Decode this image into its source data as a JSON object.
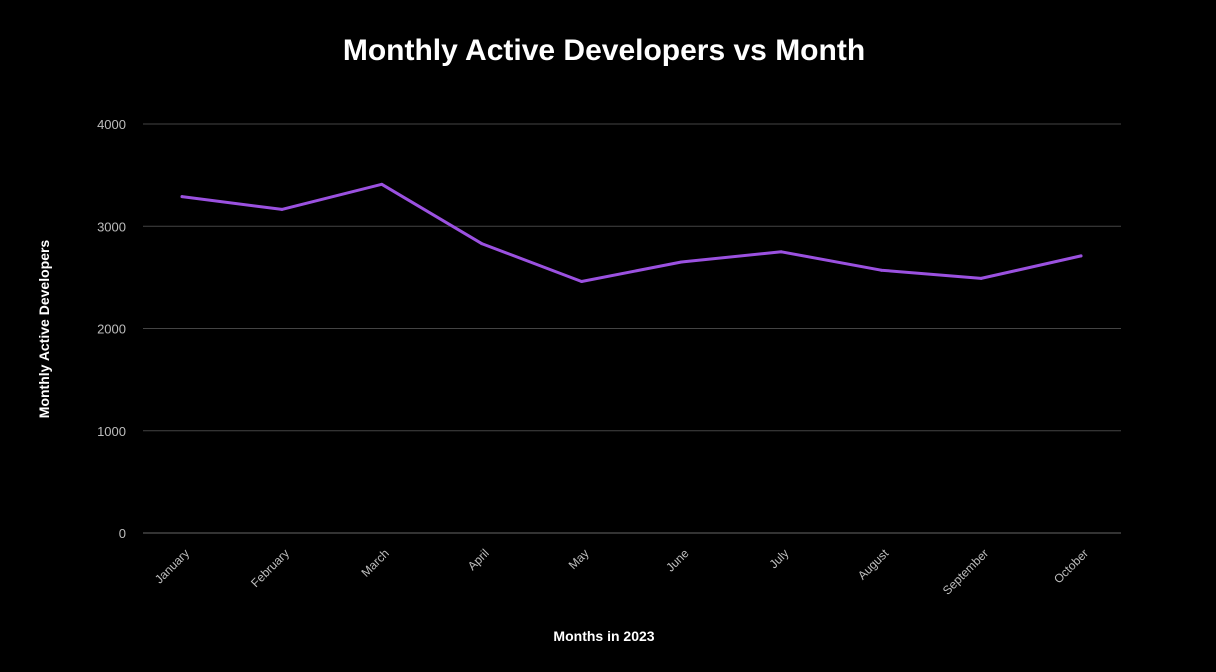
{
  "chart_data": {
    "type": "line",
    "title": "Monthly Active Developers vs Month",
    "xlabel": "Months in 2023",
    "ylabel": "Monthly Active Developers",
    "categories": [
      "January",
      "February",
      "March",
      "April",
      "May",
      "June",
      "July",
      "August",
      "September",
      "October"
    ],
    "series": [
      {
        "name": "Monthly Active Developers",
        "values": [
          3290,
          3165,
          3410,
          2830,
          2460,
          2650,
          2750,
          2570,
          2490,
          2710
        ]
      }
    ],
    "ylim": [
      0,
      4000
    ],
    "yticks": [
      0,
      1000,
      2000,
      3000,
      4000
    ],
    "grid": true,
    "colors": {
      "line": "#9b51e0",
      "grid": "#444444",
      "background": "#000000"
    }
  }
}
